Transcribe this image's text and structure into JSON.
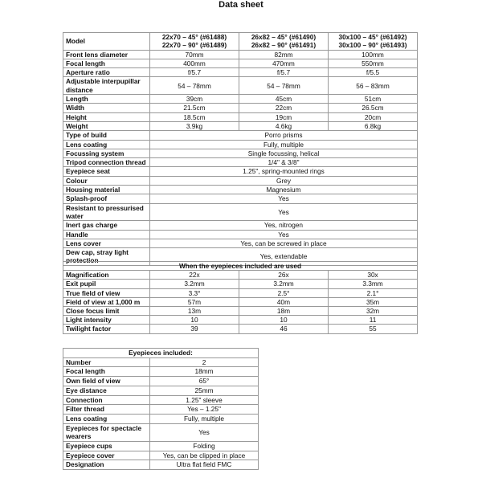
{
  "title": "Data sheet",
  "specs": {
    "model_label": "Model",
    "models": [
      [
        "22x70 – 45° (#61488)",
        "22x70 – 90° (#61489)"
      ],
      [
        "26x82 – 45° (#61490)",
        "26x82 – 90° (#61491)"
      ],
      [
        "30x100 – 45° (#61492)",
        "30x100 – 90° (#61493)"
      ]
    ],
    "rows": [
      {
        "label": "Front lens diameter",
        "values": [
          "70mm",
          "82mm",
          "100mm"
        ]
      },
      {
        "label": "Focal length",
        "values": [
          "400mm",
          "470mm",
          "550mm"
        ]
      },
      {
        "label": "Aperture ratio",
        "values": [
          "f/5.7",
          "f/5.7",
          "f/5.5"
        ]
      },
      {
        "label": "Adjustable interpupillar distance",
        "values": [
          "54 – 78mm",
          "54 – 78mm",
          "56 – 83mm"
        ]
      },
      {
        "label": "Length",
        "values": [
          "39cm",
          "45cm",
          "51cm"
        ]
      },
      {
        "label": "Width",
        "values": [
          "21.5cm",
          "22cm",
          "26.5cm"
        ]
      },
      {
        "label": "Height",
        "values": [
          "18.5cm",
          "19cm",
          "20cm"
        ]
      },
      {
        "label": "Weight",
        "values": [
          "3.9kg",
          "4.6kg",
          "6.8kg"
        ]
      }
    ],
    "shared_rows": [
      {
        "label": "Type of build",
        "value": "Porro prisms"
      },
      {
        "label": "Lens coating",
        "value": "Fully, multiple"
      },
      {
        "label": "Focussing system",
        "value": "Single focussing, helical"
      },
      {
        "label": "Tripod connection thread",
        "value": "1/4\" & 3/8\""
      },
      {
        "label": "Eyepiece seat",
        "value": "1.25\", spring-mounted rings"
      },
      {
        "label": "Colour",
        "value": "Grey"
      },
      {
        "label": "Housing material",
        "value": "Magnesium"
      },
      {
        "label": "Splash-proof",
        "value": "Yes"
      },
      {
        "label": "Resistant to pressurised water",
        "value": "Yes"
      },
      {
        "label": "Inert gas charge",
        "value": "Yes, nitrogen"
      },
      {
        "label": "Handle",
        "value": "Yes"
      },
      {
        "label": "Lens cover",
        "value": "Yes, can be screwed in place"
      },
      {
        "label": "Dew cap, stray light protection",
        "value": "Yes, extendable"
      }
    ]
  },
  "eyepiece_use": {
    "title": "When the eyepieces included are used",
    "rows": [
      {
        "label": "Magnification",
        "values": [
          "22x",
          "26x",
          "30x"
        ]
      },
      {
        "label": "Exit pupil",
        "values": [
          "3.2mm",
          "3.2mm",
          "3.3mm"
        ]
      },
      {
        "label": "True field of view",
        "values": [
          "3.3°",
          "2.5°",
          "2.1°"
        ]
      },
      {
        "label": "Field of view at 1,000 m",
        "values": [
          "57m",
          "40m",
          "35m"
        ]
      },
      {
        "label": "Close focus limit",
        "values": [
          "13m",
          "18m",
          "32m"
        ]
      },
      {
        "label": "Light intensity",
        "values": [
          "10",
          "10",
          "11"
        ]
      },
      {
        "label": "Twilight factor",
        "values": [
          "39",
          "46",
          "55"
        ]
      }
    ]
  },
  "eyepieces": {
    "title": "Eyepieces included:",
    "rows": [
      {
        "label": "Number",
        "value": "2"
      },
      {
        "label": "Focal length",
        "value": "18mm"
      },
      {
        "label": "Own field of view",
        "value": "65°"
      },
      {
        "label": "Eye distance",
        "value": "25mm"
      },
      {
        "label": "Connection",
        "value": "1.25\" sleeve"
      },
      {
        "label": "Filter thread",
        "value": "Yes – 1.25\""
      },
      {
        "label": "Lens coating",
        "value": "Fully, multiple"
      },
      {
        "label": "Eyepieces for spectacle wearers",
        "value": "Yes"
      },
      {
        "label": "Eyepiece cups",
        "value": "Folding"
      },
      {
        "label": "Eyepiece cover",
        "value": "Yes, can be clipped in place"
      },
      {
        "label": "Designation",
        "value": "Ultra flat field FMC"
      }
    ]
  }
}
